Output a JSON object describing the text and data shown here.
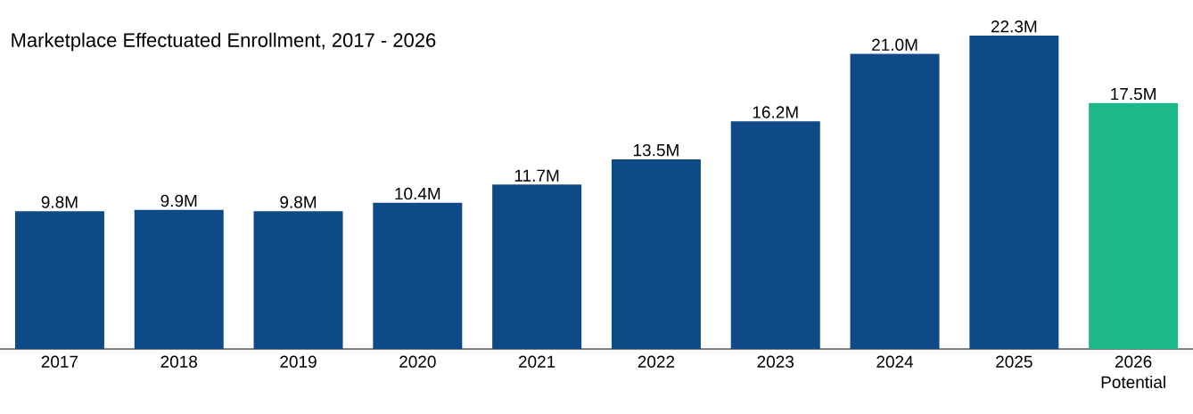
{
  "chart_data": {
    "type": "bar",
    "title": "Marketplace Effectuated Enrollment, 2017 - 2026",
    "categories": [
      "2017",
      "2018",
      "2019",
      "2020",
      "2021",
      "2022",
      "2023",
      "2024",
      "2025",
      "2026 Potential"
    ],
    "values": [
      9.8,
      9.9,
      9.8,
      10.4,
      11.7,
      13.5,
      16.2,
      21.0,
      22.3,
      17.5
    ],
    "value_labels": [
      "9.8M",
      "9.9M",
      "9.8M",
      "10.4M",
      "11.7M",
      "13.5M",
      "16.2M",
      "21.0M",
      "22.3M",
      "17.5M"
    ],
    "colors": [
      "#0e4a87",
      "#0e4a87",
      "#0e4a87",
      "#0e4a87",
      "#0e4a87",
      "#0e4a87",
      "#0e4a87",
      "#0e4a87",
      "#0e4a87",
      "#1db88a"
    ]
  }
}
